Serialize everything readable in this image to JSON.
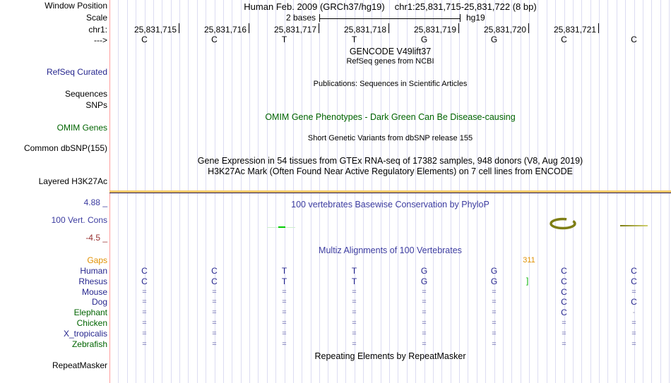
{
  "header": {
    "assembly_title": "Human Feb. 2009 (GRCh37/hg19)",
    "position_title": "chr1:25,831,715-25,831,722 (8 bp)",
    "scale_label": "2 bases",
    "assembly_short": "hg19"
  },
  "colors": {
    "black": "#000000",
    "navy": "#26268e",
    "blue": "#3c3ca0",
    "green": "#006400",
    "orange": "#e09000",
    "maroon": "#993333",
    "slate": "#6a6aae",
    "dash_grey": "#9a9ab8",
    "grid": "#dcdcf2",
    "guide_pink": "#ff9e9e",
    "h3k27ac_band": "#f6c868",
    "h3k27ac_edge": "#2a1a4a",
    "olive": "#7e7e14",
    "olive_fade": "#d0d070",
    "bright_green": "#00cc00",
    "pale_green": "#cdeecd",
    "bracket_green": "#00b000",
    "tick": "#000000"
  },
  "left_labels": [
    {
      "text": "Window Position",
      "color": "black"
    },
    {
      "text": "Scale",
      "color": "black"
    },
    {
      "text": "chr1:",
      "color": "black"
    },
    {
      "text": "--->",
      "color": "black"
    },
    {
      "text": "RefSeq Curated",
      "color": "navy"
    },
    {
      "text": "Sequences",
      "color": "black"
    },
    {
      "text": "SNPs",
      "color": "black"
    },
    {
      "text": "OMIM Genes",
      "color": "green"
    },
    {
      "text": "Common dbSNP(155)",
      "color": "black"
    },
    {
      "text": "Layered H3K27Ac",
      "color": "black"
    },
    {
      "text": "4.88 _",
      "color": "blue"
    },
    {
      "text": "100 Vert. Cons",
      "color": "blue"
    },
    {
      "text": "-4.5 _",
      "color": "maroon"
    },
    {
      "text": "RepeatMasker",
      "color": "black"
    }
  ],
  "ruler": {
    "positions": [
      "25,831,715",
      "25,831,716",
      "25,831,717",
      "25,831,718",
      "25,831,719",
      "25,831,720",
      "25,831,721"
    ]
  },
  "sequence": [
    "C",
    "C",
    "T",
    "T",
    "G",
    "G",
    "C",
    "C"
  ],
  "track_texts": [
    {
      "text": "GENCODE V49lift37",
      "color": "black"
    },
    {
      "text": "RefSeq genes from NCBI",
      "color": "black"
    },
    {
      "text": "Publications: Sequences in Scientific Articles",
      "color": "black"
    },
    {
      "text": "OMIM Gene Phenotypes - Dark Green Can Be Disease-causing",
      "color": "green"
    },
    {
      "text": "Short Genetic Variants from dbSNP release 155",
      "color": "black"
    },
    {
      "text": "Gene Expression in 54 tissues from GTEx RNA-seq of 17382 samples, 948 donors (V8, Aug 2019)",
      "color": "black"
    },
    {
      "text": "H3K27Ac Mark (Often Found Near Active Regulatory Elements) on 7 cell lines from ENCODE",
      "color": "black"
    },
    {
      "text": "100 vertebrates Basewise Conservation by PhyloP",
      "color": "blue"
    },
    {
      "text": "Multiz Alignments of 100 Vertebrates",
      "color": "blue"
    },
    {
      "text": "Repeating Elements by RepeatMasker",
      "color": "black"
    }
  ],
  "alignment": {
    "gap_count": "311",
    "bracket": "]",
    "rows": [
      {
        "name": "Gaps",
        "color": "orange",
        "cells": [
          "",
          "",
          "",
          "",
          "",
          "",
          "",
          ""
        ]
      },
      {
        "name": "Human",
        "color": "navy",
        "cells": [
          "C",
          "C",
          "T",
          "T",
          "G",
          "G",
          "C",
          "C"
        ]
      },
      {
        "name": "Rhesus",
        "color": "navy",
        "cells": [
          "C",
          "C",
          "T",
          "T",
          "G",
          "G",
          "C",
          "C"
        ]
      },
      {
        "name": "Mouse",
        "color": "navy",
        "cells": [
          "=",
          "=",
          "=",
          "=",
          "=",
          "=",
          "C",
          "="
        ]
      },
      {
        "name": "Dog",
        "color": "navy",
        "cells": [
          "=",
          "=",
          "=",
          "=",
          "=",
          "=",
          "C",
          "C"
        ]
      },
      {
        "name": "Elephant",
        "color": "green",
        "cells": [
          "=",
          "=",
          "=",
          "=",
          "=",
          "=",
          "C",
          "-"
        ]
      },
      {
        "name": "Chicken",
        "color": "green",
        "cells": [
          "=",
          "=",
          "=",
          "=",
          "=",
          "=",
          "=",
          "="
        ]
      },
      {
        "name": "X_tropicalis",
        "color": "navy",
        "cells": [
          "=",
          "=",
          "=",
          "=",
          "=",
          "=",
          "=",
          "="
        ]
      },
      {
        "name": "Zebrafish",
        "color": "green",
        "cells": [
          "=",
          "=",
          "=",
          "=",
          "=",
          "=",
          "=",
          "="
        ]
      }
    ]
  }
}
